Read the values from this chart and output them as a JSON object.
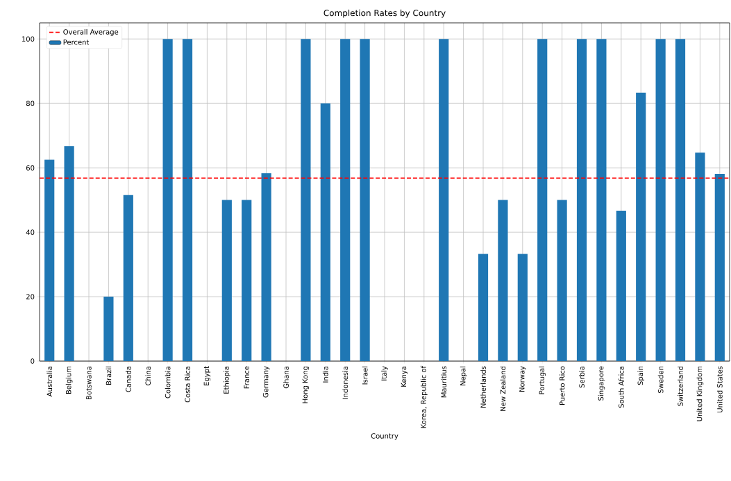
{
  "chart_data": {
    "type": "bar",
    "title": "Completion Rates by Country",
    "xlabel": "Country",
    "categories": [
      "Australia",
      "Belgium",
      "Botswana",
      "Brazil",
      "Canada",
      "China",
      "Colombia",
      "Costa Rica",
      "Egypt",
      "Ethiopia",
      "France",
      "Germany",
      "Ghana",
      "Hong Kong",
      "India",
      "Indonesia",
      "Israel",
      "Italy",
      "Kenya",
      "Korea, Republic of",
      "Mauritius",
      "Nepal",
      "Netherlands",
      "New Zealand",
      "Norway",
      "Portugal",
      "Puerto Rico",
      "Serbia",
      "Singapore",
      "South Africa",
      "Spain",
      "Sweden",
      "Switzerland",
      "United Kingdom",
      "United States"
    ],
    "series": [
      {
        "name": "Percent",
        "color": "#1f77b4",
        "values": [
          62.5,
          66.7,
          0,
          20,
          51.6,
          0,
          100,
          100,
          0,
          50,
          50,
          58.3,
          0,
          100,
          80,
          100,
          100,
          0,
          0,
          0,
          100,
          0,
          33.3,
          50,
          33.3,
          100,
          50,
          100,
          100,
          46.7,
          83.3,
          100,
          100,
          64.7,
          58.1
        ]
      }
    ],
    "ref_lines": [
      {
        "axis": "y",
        "value": 56.8,
        "label": "Overall Average",
        "color": "#ff0000",
        "line_style": "dashed"
      }
    ],
    "ylim": [
      0,
      105
    ],
    "yticks": [
      0,
      20,
      40,
      60,
      80,
      100
    ],
    "grid": true,
    "legend": "top left"
  }
}
